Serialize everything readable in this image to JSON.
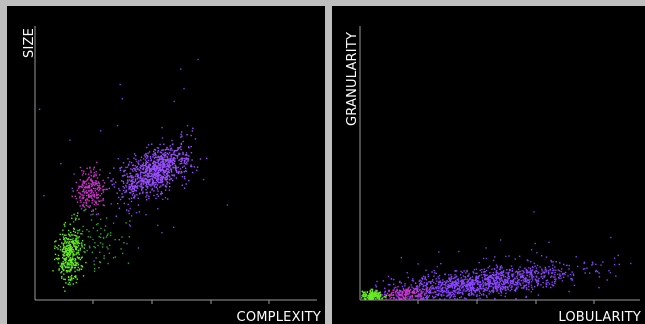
{
  "chart_data": [
    {
      "type": "scatter",
      "xlabel": "COMPLEXITY",
      "ylabel": "SIZE",
      "title": "",
      "xlim": [
        0,
        1
      ],
      "ylim": [
        0,
        1
      ],
      "grid": false,
      "legend": "none",
      "series": [
        {
          "color": "#9a4dff",
          "points": 900,
          "center": [
            0.42,
            0.47
          ],
          "spread": [
            0.065,
            0.04
          ],
          "tilt": 0.45
        },
        {
          "color": "#cc33cc",
          "points": 220,
          "center": [
            0.19,
            0.4
          ],
          "spread": [
            0.025,
            0.035
          ],
          "tilt": 0.2
        },
        {
          "color": "#66ee22",
          "points": 380,
          "center": [
            0.12,
            0.17
          ],
          "spread": [
            0.022,
            0.05
          ],
          "tilt": 0.4
        },
        {
          "color": "#22aa33",
          "points": 80,
          "center": [
            0.22,
            0.22
          ],
          "spread": [
            0.05,
            0.05
          ],
          "tilt": 0.1
        },
        {
          "color": "#7744dd",
          "points": 60,
          "center": [
            0.35,
            0.45
          ],
          "spread": [
            0.18,
            0.15
          ],
          "tilt": 0.3
        }
      ]
    },
    {
      "type": "scatter",
      "xlabel": "LOBULARITY",
      "ylabel": "GRANULARITY",
      "title": "",
      "xlim": [
        0,
        1
      ],
      "ylim": [
        0,
        1
      ],
      "grid": false,
      "legend": "none",
      "series": [
        {
          "color": "#8a44ff",
          "points": 1300,
          "center": [
            0.42,
            0.06
          ],
          "spread": [
            0.17,
            0.026
          ],
          "tilt": 0.12
        },
        {
          "color": "#cc33cc",
          "points": 140,
          "center": [
            0.15,
            0.02
          ],
          "spread": [
            0.04,
            0.012
          ],
          "tilt": 0.05
        },
        {
          "color": "#66ee22",
          "points": 160,
          "center": [
            0.04,
            0.015
          ],
          "spread": [
            0.022,
            0.01
          ],
          "tilt": 0.0
        },
        {
          "color": "#7744dd",
          "points": 50,
          "center": [
            0.55,
            0.12
          ],
          "spread": [
            0.2,
            0.07
          ],
          "tilt": 0.0
        }
      ]
    }
  ]
}
